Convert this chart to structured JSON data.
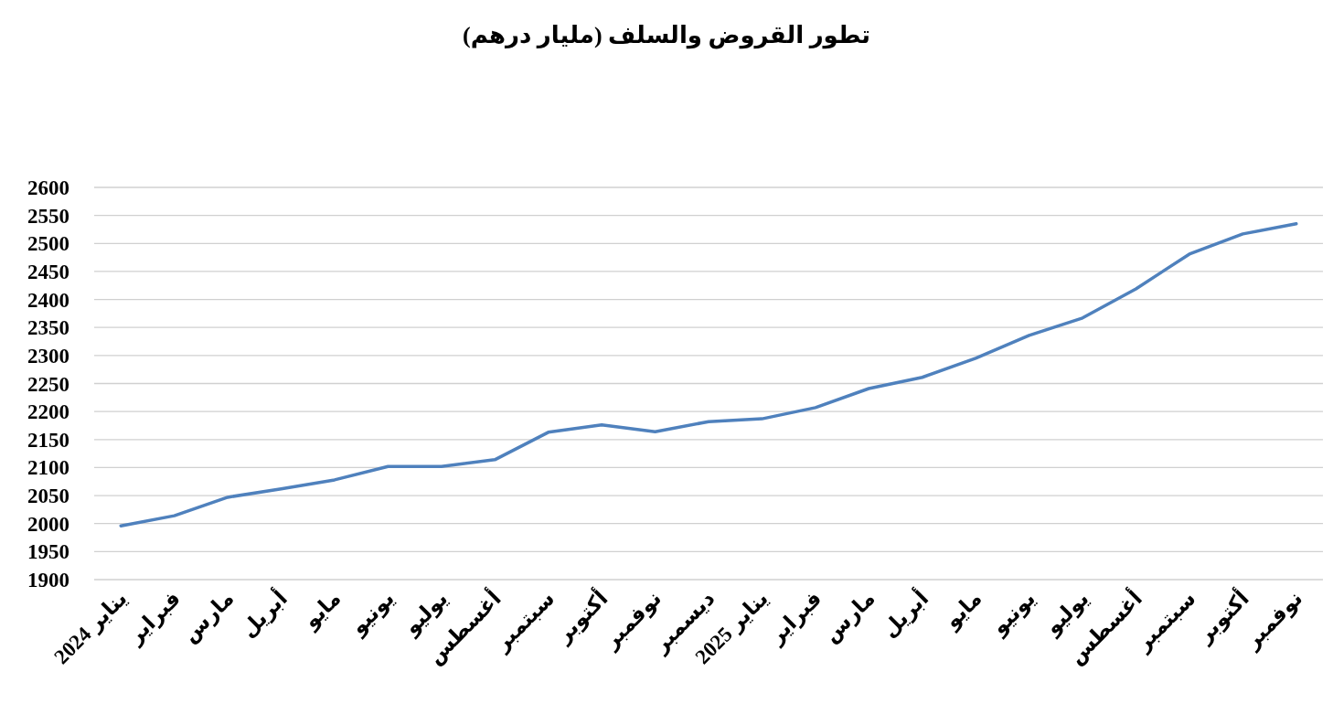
{
  "chart_data": {
    "type": "line",
    "title": "تطور القروض والسلف (مليار درهم)",
    "categories": [
      "يناير 2024",
      "فبراير",
      "مارس",
      "أبريل",
      "مايو",
      "يونيو",
      "يوليو",
      "أغسطس",
      "سبتمبر",
      "أكتوبر",
      "نوفمبر",
      "ديسمبر",
      "يناير 2025",
      "فبراير",
      "مارس",
      "أبريل",
      "مايو",
      "يونيو",
      "يوليو",
      "أغسطس",
      "سبتمبر",
      "أكتوبر",
      "نوفمبر"
    ],
    "values": [
      1996,
      2014,
      2047,
      2062,
      2078,
      2102,
      2102,
      2114,
      2163,
      2176,
      2164,
      2182,
      2187,
      2207,
      2241,
      2261,
      2295,
      2336,
      2367,
      2419,
      2481,
      2517,
      2535
    ],
    "color": "#4f81bd",
    "ylim": [
      1900,
      2600
    ],
    "yticks": [
      1900,
      1950,
      2000,
      2050,
      2100,
      2150,
      2200,
      2250,
      2300,
      2350,
      2400,
      2450,
      2500,
      2550,
      2600
    ],
    "grid": "y"
  }
}
